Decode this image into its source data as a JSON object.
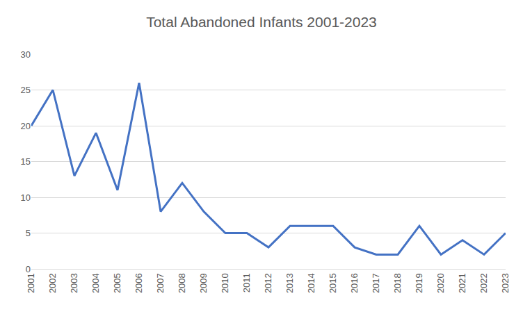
{
  "chart_data": {
    "type": "line",
    "title": "Total Abandoned Infants 2001-2023",
    "categories": [
      "2001",
      "2002",
      "2003",
      "2004",
      "2005",
      "2006",
      "2007",
      "2008",
      "2009",
      "2010",
      "2011",
      "2012",
      "2013",
      "2014",
      "2015",
      "2016",
      "2017",
      "2018",
      "2019",
      "2020",
      "2021",
      "2022",
      "2023"
    ],
    "values": [
      20,
      25,
      13,
      19,
      11,
      26,
      8,
      12,
      8,
      5,
      5,
      3,
      6,
      6,
      6,
      3,
      2,
      2,
      6,
      2,
      4,
      2,
      5
    ],
    "color": "#4472c4",
    "ylim": [
      0,
      30
    ],
    "yticks": [
      0,
      5,
      10,
      15,
      20,
      25,
      30
    ],
    "grid": true
  }
}
